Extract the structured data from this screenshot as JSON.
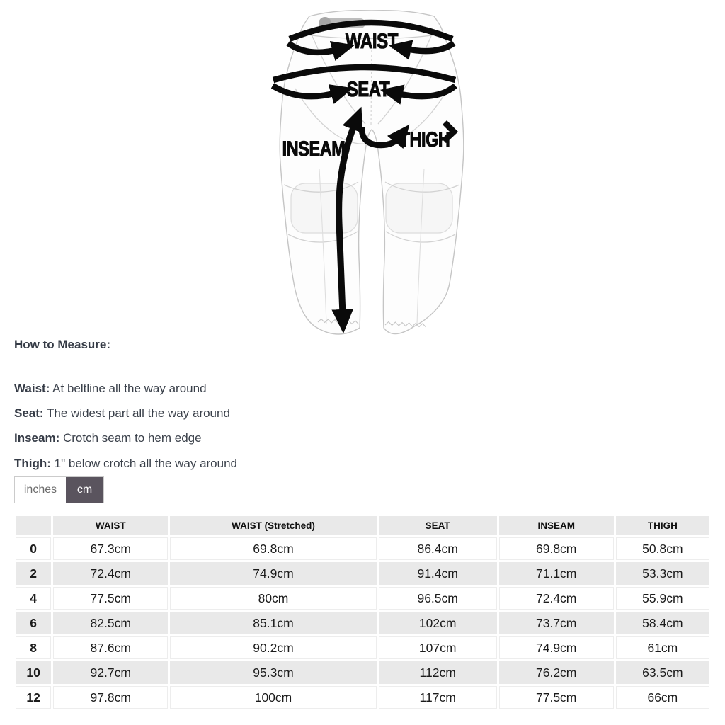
{
  "diagram": {
    "labels": {
      "waist": "WAIST",
      "seat": "SEAT",
      "inseam": "INSEAM",
      "thigh": "THIGH"
    }
  },
  "how_to_measure": {
    "heading": "How to Measure:",
    "items": [
      {
        "label": "Waist:",
        "text": "At beltline all the way around"
      },
      {
        "label": "Seat:",
        "text": "The widest part all the way around"
      },
      {
        "label": "Inseam:",
        "text": "Crotch seam to hem edge"
      },
      {
        "label": "Thigh:",
        "text": "1\" below crotch all the way around"
      }
    ]
  },
  "unit_toggle": {
    "options": [
      {
        "label": "inches",
        "active": false
      },
      {
        "label": "cm",
        "active": true
      }
    ]
  },
  "table": {
    "headers": [
      "",
      "WAIST",
      "WAIST (Stretched)",
      "SEAT",
      "INSEAM",
      "THIGH"
    ],
    "rows": [
      {
        "size": "0",
        "values": [
          "67.3cm",
          "69.8cm",
          "86.4cm",
          "69.8cm",
          "50.8cm"
        ]
      },
      {
        "size": "2",
        "values": [
          "72.4cm",
          "74.9cm",
          "91.4cm",
          "71.1cm",
          "53.3cm"
        ]
      },
      {
        "size": "4",
        "values": [
          "77.5cm",
          "80cm",
          "96.5cm",
          "72.4cm",
          "55.9cm"
        ]
      },
      {
        "size": "6",
        "values": [
          "82.5cm",
          "85.1cm",
          "102cm",
          "73.7cm",
          "58.4cm"
        ]
      },
      {
        "size": "8",
        "values": [
          "87.6cm",
          "90.2cm",
          "107cm",
          "74.9cm",
          "61cm"
        ]
      },
      {
        "size": "10",
        "values": [
          "92.7cm",
          "95.3cm",
          "112cm",
          "76.2cm",
          "63.5cm"
        ]
      },
      {
        "size": "12",
        "values": [
          "97.8cm",
          "100cm",
          "117cm",
          "77.5cm",
          "66cm"
        ]
      }
    ]
  },
  "colors": {
    "toggle_active_bg": "#5a545e",
    "table_stripe": "#e9e9e9",
    "arrow_black": "#0a0a0a",
    "body_text": "#3a404a"
  }
}
